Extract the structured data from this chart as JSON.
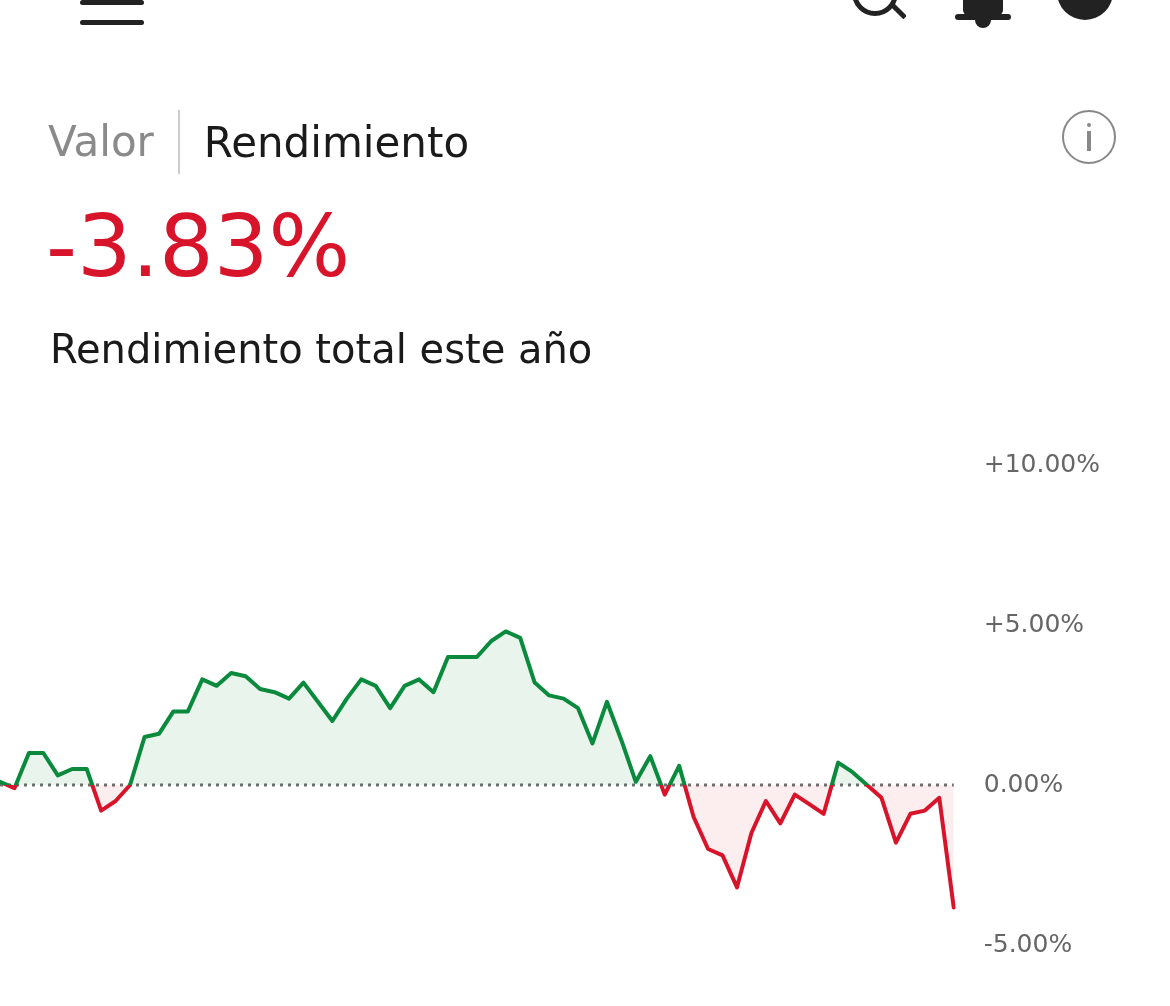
{
  "chart_data": {
    "type": "area",
    "title": "-3.83%",
    "subtitle": "Rendimiento total este año",
    "annotations": [
      "Valor",
      "Rendimiento"
    ],
    "categories": [
      null,
      null,
      null,
      null,
      null,
      null,
      null,
      null,
      null,
      null,
      null,
      null,
      null,
      null,
      null,
      null,
      null,
      null,
      null,
      null,
      null,
      null,
      null,
      null,
      null,
      null,
      null,
      null,
      null,
      null,
      null,
      null,
      null,
      null,
      null,
      null,
      null,
      null,
      null,
      null,
      null,
      null,
      null,
      null,
      null,
      null,
      null,
      null,
      null,
      null,
      null,
      null,
      null,
      null,
      null,
      null,
      null,
      null,
      null,
      null,
      null,
      null,
      null,
      null,
      null,
      null,
      null
    ],
    "series": [
      {
        "color": "#0a8a3c",
        "colors": [
          "#0a8a3c",
          "#d8142a",
          "#0a8a3c",
          "#0a8a3c",
          "#0a8a3c",
          "#0a8a3c",
          "#0a8a3c",
          "#d8142a",
          "#d8142a",
          "#0a8a3c",
          "#0a8a3c",
          "#0a8a3c",
          "#0a8a3c",
          "#0a8a3c",
          "#0a8a3c",
          "#0a8a3c",
          "#0a8a3c",
          "#0a8a3c",
          "#0a8a3c",
          "#0a8a3c",
          "#0a8a3c",
          "#0a8a3c",
          "#0a8a3c",
          "#0a8a3c",
          "#0a8a3c",
          "#0a8a3c",
          "#0a8a3c",
          "#0a8a3c",
          "#0a8a3c",
          "#0a8a3c",
          "#0a8a3c",
          "#0a8a3c",
          "#0a8a3c",
          "#0a8a3c",
          "#0a8a3c",
          "#0a8a3c",
          "#0a8a3c",
          "#0a8a3c",
          "#0a8a3c",
          "#0a8a3c",
          "#0a8a3c",
          "#0a8a3c",
          "#0a8a3c",
          "#0a8a3c",
          "#0a8a3c",
          "#0a8a3c",
          "#d8142a",
          "#0a8a3c",
          "#d8142a",
          "#d8142a",
          "#d8142a",
          "#d8142a",
          "#d8142a",
          "#d8142a",
          "#d8142a",
          "#d8142a",
          "#d8142a",
          "#d8142a",
          "#0a8a3c",
          "#0a8a3c",
          "#d8142a",
          "#d8142a",
          "#d8142a",
          "#d8142a",
          "#d8142a",
          "#d8142a",
          "#d8142a"
        ],
        "values": [
          0.1,
          -0.1,
          1.0,
          1.0,
          0.3,
          0.5,
          0.5,
          -0.8,
          -0.5,
          0.0,
          1.5,
          1.6,
          2.3,
          2.3,
          3.3,
          3.1,
          3.5,
          3.4,
          3.0,
          2.9,
          2.7,
          3.2,
          2.6,
          2.0,
          2.7,
          3.3,
          3.1,
          2.4,
          3.1,
          3.3,
          2.9,
          4.0,
          4.0,
          4.0,
          4.5,
          4.8,
          4.6,
          3.2,
          2.8,
          2.7,
          2.4,
          1.3,
          2.6,
          1.4,
          0.1,
          0.9,
          -0.3,
          0.6,
          -1.0,
          -2.0,
          -2.2,
          -3.2,
          -1.5,
          -0.5,
          -1.2,
          -0.3,
          -0.6,
          -0.9,
          0.7,
          0.4,
          -0.0,
          -0.4,
          -1.8,
          -0.9,
          -0.8,
          -0.4,
          -3.83
        ]
      }
    ],
    "ylim": [
      -5,
      10
    ],
    "yticks": [
      {
        "value": 10,
        "label": "+10.00%"
      },
      {
        "value": 5,
        "label": "+5.00%"
      },
      {
        "value": 0,
        "label": "0.00%"
      },
      {
        "value": -5,
        "label": "-5.00%"
      }
    ],
    "tick_labels": "y",
    "grid": false,
    "legend": false,
    "marker": "none",
    "line_style": "solid",
    "ref_lines": [
      {
        "axis": "y",
        "value": 0,
        "color": "#707070",
        "line_style": "dotted"
      }
    ]
  }
}
